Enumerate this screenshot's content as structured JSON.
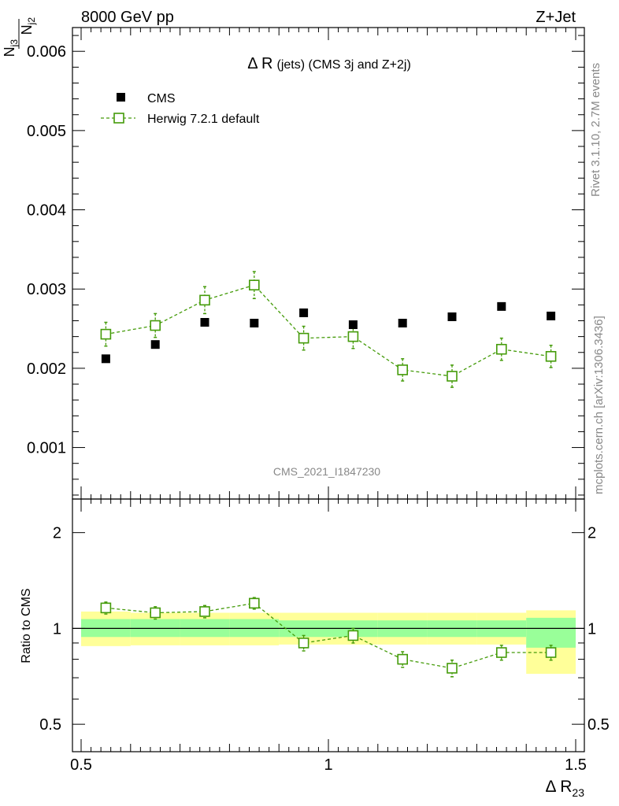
{
  "header": {
    "left_label": "8000 GeV pp",
    "right_label": "Z+Jet"
  },
  "side_labels": {
    "rivet": "Rivet 3.1.10,  2.7M events",
    "mcplots": "mcplots.cern.ch [arXiv:1306.3436]"
  },
  "watermark": "CMS_2021_I1847230",
  "colors": {
    "cms": "#000000",
    "herwig": "#449b09",
    "band_outer": "#ffff99",
    "band_inner": "#99ff99"
  },
  "chart_data": [
    {
      "type": "scatter",
      "panel": "main",
      "title": "Δ R (jets) (CMS 3j and Z+2j)",
      "title_main": "Δ R",
      "title_sub": "(jets) (CMS 3j and Z+2j)",
      "ylabel_num": "N",
      "ylabel_num_sub": "j3",
      "ylabel_den": "N",
      "ylabel_den_sub": "j2",
      "xlim": [
        0.5,
        1.5
      ],
      "ylim": [
        0.00035,
        0.0063
      ],
      "yticks": [
        0.001,
        0.002,
        0.003,
        0.004,
        0.005,
        0.006
      ],
      "ytick_labels": [
        "0.001",
        "0.002",
        "0.003",
        "0.004",
        "0.005",
        "0.006"
      ],
      "legend": [
        {
          "label": "CMS",
          "marker": "filled-square"
        },
        {
          "label": "Herwig 7.2.1 default",
          "marker": "open-square-dashed"
        }
      ],
      "x": [
        0.55,
        0.65,
        0.75,
        0.85,
        0.95,
        1.05,
        1.15,
        1.25,
        1.35,
        1.45
      ],
      "series": [
        {
          "name": "CMS",
          "values": [
            0.00212,
            0.0023,
            0.00258,
            0.00257,
            0.0027,
            0.00255,
            0.00257,
            0.00265,
            0.00278,
            0.00266
          ]
        },
        {
          "name": "Herwig 7.2.1 default",
          "values": [
            0.00243,
            0.00254,
            0.00286,
            0.00305,
            0.00238,
            0.0024,
            0.00198,
            0.0019,
            0.00224,
            0.00215
          ],
          "errors": [
            0.00015,
            0.00015,
            0.00017,
            0.00017,
            0.00015,
            0.00015,
            0.00014,
            0.00014,
            0.00014,
            0.00014
          ]
        }
      ]
    },
    {
      "type": "scatter",
      "panel": "ratio",
      "ylabel": "Ratio to CMS",
      "xlabel": "Δ R",
      "xlabel_sub": "23",
      "xlim": [
        0.5,
        1.5
      ],
      "ylim": [
        0.41,
        2.55
      ],
      "yticks": [
        0.5,
        1,
        2
      ],
      "ytick_labels": [
        "0.5",
        "1",
        "2"
      ],
      "xticks": [
        0.5,
        1,
        1.5
      ],
      "xtick_labels": [
        "0.5",
        "1",
        "1.5"
      ],
      "x_edges": [
        0.5,
        0.6,
        0.7,
        0.8,
        0.9,
        1.0,
        1.1,
        1.2,
        1.3,
        1.4,
        1.5
      ],
      "band_outer": [
        [
          0.88,
          1.13
        ],
        [
          0.885,
          1.12
        ],
        [
          0.885,
          1.12
        ],
        [
          0.885,
          1.12
        ],
        [
          0.89,
          1.12
        ],
        [
          0.89,
          1.12
        ],
        [
          0.89,
          1.12
        ],
        [
          0.89,
          1.12
        ],
        [
          0.89,
          1.12
        ],
        [
          0.72,
          1.14
        ]
      ],
      "band_inner": [
        [
          0.94,
          1.07
        ],
        [
          0.94,
          1.07
        ],
        [
          0.94,
          1.07
        ],
        [
          0.94,
          1.07
        ],
        [
          0.94,
          1.06
        ],
        [
          0.94,
          1.06
        ],
        [
          0.94,
          1.06
        ],
        [
          0.94,
          1.06
        ],
        [
          0.94,
          1.06
        ],
        [
          0.87,
          1.08
        ]
      ],
      "series": [
        {
          "name": "Herwig 7.2.1 default",
          "values": [
            1.16,
            1.12,
            1.13,
            1.2,
            0.9,
            0.95,
            0.8,
            0.75,
            0.84,
            0.84
          ],
          "errors": [
            0.05,
            0.05,
            0.05,
            0.05,
            0.05,
            0.05,
            0.045,
            0.045,
            0.045,
            0.045
          ]
        }
      ]
    }
  ]
}
